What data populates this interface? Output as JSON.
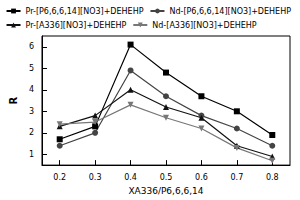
{
  "chart_data": {
    "type": "line",
    "x_label": "XA336/P6,6,6,14",
    "y_label": "R",
    "x": [
      0.2,
      0.3,
      0.4,
      0.5,
      0.6,
      0.7,
      0.8
    ],
    "xlim": [
      0.15,
      0.85
    ],
    "xticks": [
      0.2,
      0.3,
      0.4,
      0.5,
      0.6,
      0.7,
      0.8
    ],
    "ylim": [
      0.5,
      6.5
    ],
    "yticks": [
      1,
      2,
      3,
      4,
      5,
      6
    ],
    "grid": false,
    "legend": "upper right",
    "series": [
      {
        "name": "Pr-[P6,6,6,14][NO3]+DEHEHP",
        "color": "#000000",
        "marker": "square",
        "values": [
          1.7,
          2.3,
          6.1,
          4.8,
          3.7,
          3.0,
          1.9
        ]
      },
      {
        "name": "Nd-[P6,6,6,14][NO3]+DEHEHP",
        "color": "#444444",
        "marker": "circle",
        "values": [
          1.4,
          2.0,
          4.9,
          3.7,
          2.8,
          2.2,
          1.4
        ]
      },
      {
        "name": "Pr-[A336][NO3]+DEHEHP",
        "color": "#111111",
        "marker": "triangle",
        "values": [
          2.3,
          2.8,
          4.0,
          3.2,
          2.7,
          1.4,
          0.9
        ]
      },
      {
        "name": "Nd-[A336][NO3]+DEHEHP",
        "color": "#777777",
        "marker": "triangle-down",
        "values": [
          2.4,
          2.5,
          3.3,
          2.7,
          2.2,
          1.3,
          0.7
        ]
      }
    ]
  }
}
